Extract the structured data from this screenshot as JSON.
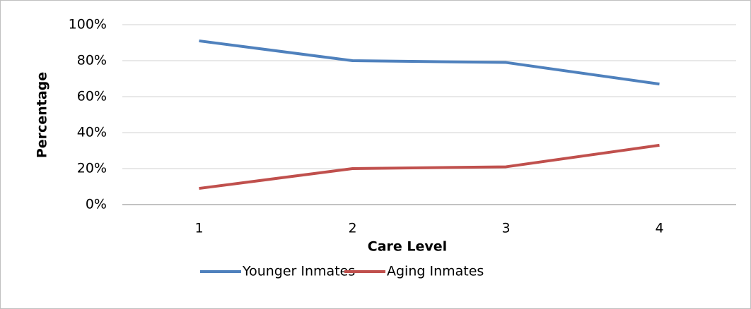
{
  "chart_data": {
    "type": "line",
    "x_label": "Care Level",
    "y_label": "Percentage",
    "categories": [
      "1",
      "2",
      "3",
      "4"
    ],
    "series": [
      {
        "name": "Younger Inmates",
        "color": "#4f81bd",
        "values": [
          91,
          80,
          79,
          67
        ]
      },
      {
        "name": "Aging Inmates",
        "color": "#c0504d",
        "values": [
          9,
          20,
          21,
          33
        ]
      }
    ],
    "ylim": [
      0,
      100
    ],
    "yticks": [
      {
        "value": 0,
        "label": "0%"
      },
      {
        "value": 20,
        "label": "20%"
      },
      {
        "value": 40,
        "label": "40%"
      },
      {
        "value": 60,
        "label": "60%"
      },
      {
        "value": 80,
        "label": "80%"
      },
      {
        "value": 100,
        "label": "100%"
      }
    ],
    "grid": true,
    "legend": "bottom"
  }
}
